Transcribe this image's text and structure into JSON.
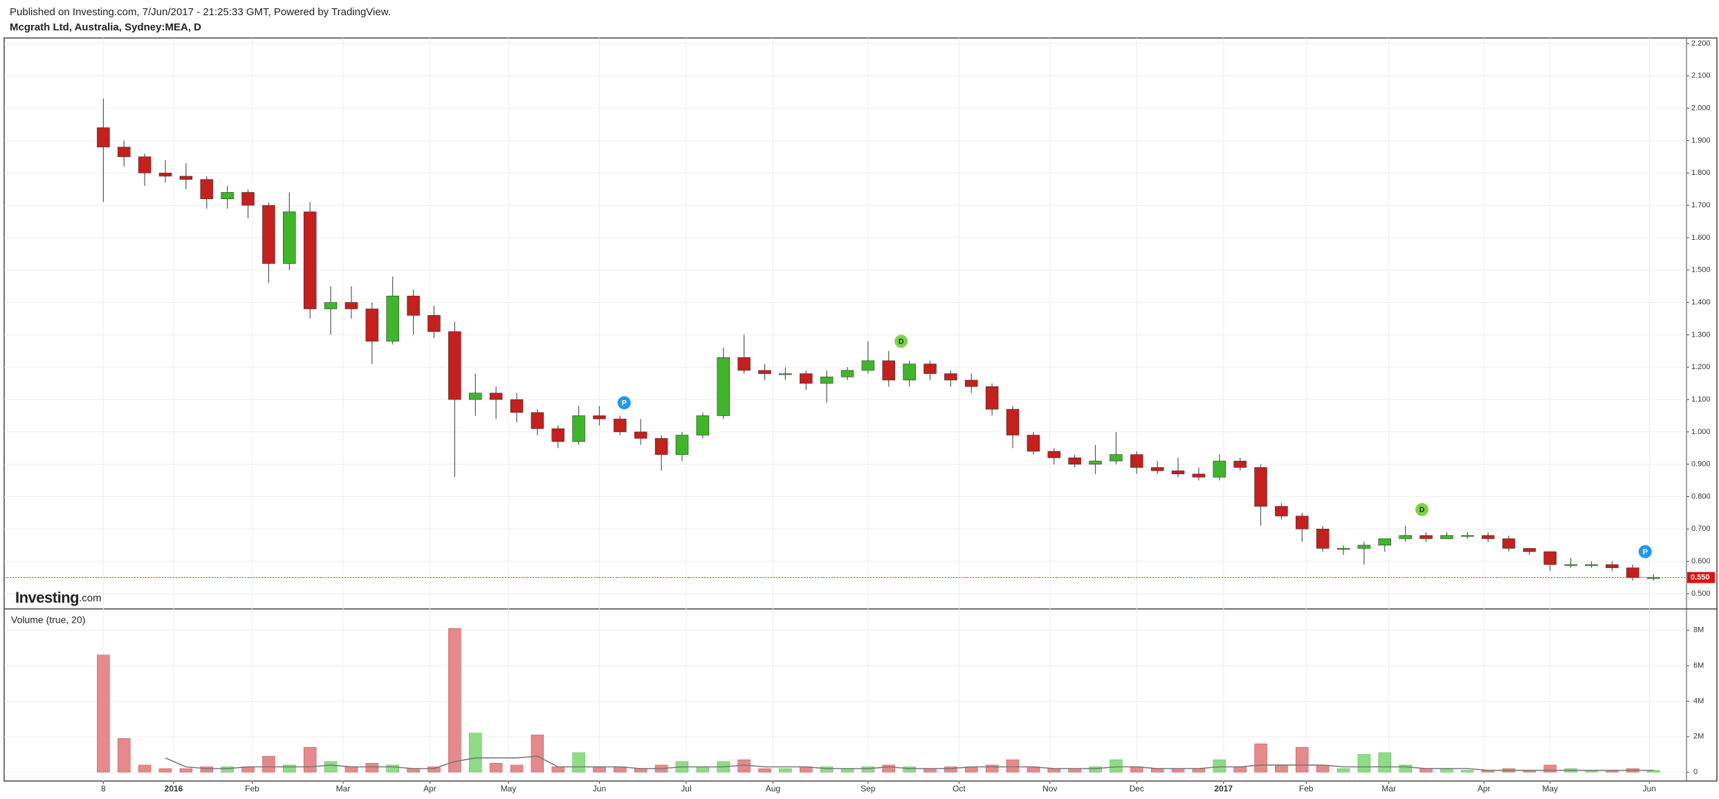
{
  "chart_data": {
    "type": "candlestick",
    "subtitle": "Published on Investing.com, 7/Jun/2017 - 21:25:33 GMT, Powered by TradingView.",
    "title": "Mcgrath Ltd, Australia, Sydney:MEA, D",
    "volume_label": "Volume (true, 20)",
    "watermark": {
      "brand": "Investing",
      "suffix": ".com"
    },
    "grid": true,
    "up_color": "#3fb62a",
    "down_color": "#c4201e",
    "up_volume_color": "#8fdc87",
    "down_volume_color": "#e58a8b",
    "volume_ma_color": "#777777",
    "xlim": [
      -24,
      383
    ],
    "xticks": [
      {
        "value": 0,
        "label": "8"
      },
      {
        "value": 17,
        "label": "2016"
      },
      {
        "value": 36,
        "label": "Feb"
      },
      {
        "value": 58,
        "label": "Mar"
      },
      {
        "value": 79,
        "label": "Apr"
      },
      {
        "value": 98,
        "label": "May"
      },
      {
        "value": 120,
        "label": "Jun"
      },
      {
        "value": 141,
        "label": "Jul"
      },
      {
        "value": 162,
        "label": "Aug"
      },
      {
        "value": 185,
        "label": "Sep"
      },
      {
        "value": 207,
        "label": "Oct"
      },
      {
        "value": 229,
        "label": "Nov"
      },
      {
        "value": 250,
        "label": "Dec"
      },
      {
        "value": 271,
        "label": "2017"
      },
      {
        "value": 291,
        "label": "Feb"
      },
      {
        "value": 311,
        "label": "Mar"
      },
      {
        "value": 334,
        "label": "Apr"
      },
      {
        "value": 350,
        "label": "May"
      },
      {
        "value": 374,
        "label": "Jun"
      }
    ],
    "ylim": [
      0.453,
      2.217
    ],
    "yticks": [
      {
        "value": 0.5,
        "label": "0.500"
      },
      {
        "value": 0.6,
        "label": "0.600"
      },
      {
        "value": 0.7,
        "label": "0.700"
      },
      {
        "value": 0.8,
        "label": "0.800"
      },
      {
        "value": 0.9,
        "label": "0.900"
      },
      {
        "value": 1.0,
        "label": "1.000"
      },
      {
        "value": 1.1,
        "label": "1.100"
      },
      {
        "value": 1.2,
        "label": "1.200"
      },
      {
        "value": 1.3,
        "label": "1.300"
      },
      {
        "value": 1.4,
        "label": "1.400"
      },
      {
        "value": 1.5,
        "label": "1.500"
      },
      {
        "value": 1.6,
        "label": "1.600"
      },
      {
        "value": 1.7,
        "label": "1.700"
      },
      {
        "value": 1.8,
        "label": "1.800"
      },
      {
        "value": 1.9,
        "label": "1.900"
      },
      {
        "value": 2.0,
        "label": "2.000"
      },
      {
        "value": 2.1,
        "label": "2.100"
      },
      {
        "value": 2.2,
        "label": "2.200"
      }
    ],
    "volume_ylim": [
      -0.5,
      9.2
    ],
    "volume_yticks": [
      0,
      {
        "value": 2,
        "label": "2M"
      },
      {
        "value": 4,
        "label": "4M"
      },
      {
        "value": 6,
        "label": "6M"
      },
      {
        "value": 8,
        "label": "8M"
      }
    ],
    "last_price": {
      "value": 0.55,
      "label": "0.550",
      "color": "#e01010"
    },
    "events": [
      {
        "label": "P",
        "x": 126,
        "y": 1.09,
        "color": "#2196f3"
      },
      {
        "label": "D",
        "x": 193,
        "y": 1.28,
        "color": "#7ed348"
      },
      {
        "label": "D",
        "x": 319,
        "y": 0.76,
        "color": "#7ed348"
      },
      {
        "label": "P",
        "x": 373,
        "y": 0.63,
        "color": "#2196f3"
      }
    ],
    "x": [
      0,
      5,
      10,
      15,
      20,
      25,
      30,
      35,
      40,
      45,
      50,
      55,
      60,
      65,
      70,
      75,
      80,
      85,
      90,
      95,
      100,
      105,
      110,
      115,
      120,
      125,
      130,
      135,
      140,
      145,
      150,
      155,
      160,
      165,
      170,
      175,
      180,
      185,
      190,
      195,
      200,
      205,
      210,
      215,
      220,
      225,
      230,
      235,
      240,
      245,
      250,
      255,
      260,
      265,
      270,
      275,
      280,
      285,
      290,
      295,
      300,
      305,
      310,
      315,
      320,
      325,
      330,
      335,
      340,
      345,
      350,
      355,
      360,
      365,
      370,
      375
    ],
    "open": [
      1.94,
      1.88,
      1.85,
      1.8,
      1.79,
      1.78,
      1.72,
      1.74,
      1.7,
      1.52,
      1.68,
      1.38,
      1.4,
      1.38,
      1.28,
      1.42,
      1.36,
      1.31,
      1.1,
      1.12,
      1.1,
      1.06,
      1.01,
      0.97,
      1.05,
      1.04,
      1.0,
      0.98,
      0.93,
      0.99,
      1.05,
      1.23,
      1.19,
      1.18,
      1.18,
      1.15,
      1.17,
      1.19,
      1.22,
      1.16,
      1.21,
      1.18,
      1.16,
      1.14,
      1.07,
      0.99,
      0.94,
      0.92,
      0.9,
      0.91,
      0.93,
      0.89,
      0.88,
      0.87,
      0.86,
      0.91,
      0.89,
      0.77,
      0.74,
      0.7,
      0.64,
      0.64,
      0.65,
      0.67,
      0.68,
      0.67,
      0.68,
      0.68,
      0.67,
      0.64,
      0.63,
      0.59,
      0.59,
      0.59,
      0.58,
      0.55
    ],
    "high": [
      2.03,
      1.9,
      1.86,
      1.84,
      1.83,
      1.79,
      1.76,
      1.75,
      1.71,
      1.74,
      1.71,
      1.45,
      1.45,
      1.4,
      1.48,
      1.44,
      1.39,
      1.34,
      1.18,
      1.14,
      1.12,
      1.07,
      1.02,
      1.08,
      1.08,
      1.05,
      1.04,
      0.99,
      1.0,
      1.06,
      1.26,
      1.3,
      1.21,
      1.2,
      1.19,
      1.19,
      1.2,
      1.28,
      1.25,
      1.22,
      1.22,
      1.19,
      1.18,
      1.15,
      1.08,
      1.0,
      0.95,
      0.93,
      0.96,
      1.0,
      0.94,
      0.91,
      0.92,
      0.89,
      0.93,
      0.92,
      0.9,
      0.78,
      0.75,
      0.71,
      0.65,
      0.66,
      0.67,
      0.71,
      0.69,
      0.69,
      0.69,
      0.69,
      0.68,
      0.64,
      0.63,
      0.61,
      0.6,
      0.6,
      0.59,
      0.56
    ],
    "low": [
      1.71,
      1.82,
      1.76,
      1.77,
      1.75,
      1.69,
      1.69,
      1.66,
      1.46,
      1.5,
      1.35,
      1.3,
      1.35,
      1.21,
      1.27,
      1.3,
      1.29,
      0.86,
      1.05,
      1.04,
      1.03,
      0.99,
      0.95,
      0.96,
      1.02,
      0.99,
      0.96,
      0.88,
      0.91,
      0.98,
      1.04,
      1.18,
      1.16,
      1.16,
      1.13,
      1.09,
      1.16,
      1.18,
      1.14,
      1.14,
      1.16,
      1.14,
      1.12,
      1.05,
      0.95,
      0.93,
      0.9,
      0.89,
      0.87,
      0.9,
      0.87,
      0.87,
      0.86,
      0.85,
      0.85,
      0.88,
      0.71,
      0.73,
      0.66,
      0.63,
      0.62,
      0.59,
      0.63,
      0.66,
      0.66,
      0.67,
      0.67,
      0.66,
      0.63,
      0.62,
      0.57,
      0.58,
      0.58,
      0.57,
      0.54,
      0.54
    ],
    "close": [
      1.88,
      1.85,
      1.8,
      1.79,
      1.78,
      1.72,
      1.74,
      1.7,
      1.52,
      1.68,
      1.38,
      1.4,
      1.38,
      1.28,
      1.42,
      1.36,
      1.31,
      1.1,
      1.12,
      1.1,
      1.06,
      1.01,
      0.97,
      1.05,
      1.04,
      1.0,
      0.98,
      0.93,
      0.99,
      1.05,
      1.23,
      1.19,
      1.18,
      1.18,
      1.15,
      1.17,
      1.19,
      1.22,
      1.16,
      1.21,
      1.18,
      1.16,
      1.14,
      1.07,
      0.99,
      0.94,
      0.92,
      0.9,
      0.91,
      0.93,
      0.89,
      0.88,
      0.87,
      0.86,
      0.91,
      0.89,
      0.77,
      0.74,
      0.7,
      0.64,
      0.64,
      0.65,
      0.67,
      0.68,
      0.67,
      0.68,
      0.68,
      0.67,
      0.64,
      0.63,
      0.59,
      0.59,
      0.59,
      0.58,
      0.55,
      0.55
    ],
    "volume": [
      6.6,
      1.9,
      0.4,
      0.2,
      0.2,
      0.3,
      0.3,
      0.3,
      0.9,
      0.4,
      1.4,
      0.6,
      0.3,
      0.5,
      0.4,
      0.2,
      0.3,
      8.1,
      2.2,
      0.5,
      0.4,
      2.1,
      0.3,
      1.1,
      0.3,
      0.3,
      0.2,
      0.4,
      0.6,
      0.3,
      0.6,
      0.7,
      0.2,
      0.2,
      0.3,
      0.3,
      0.2,
      0.3,
      0.4,
      0.3,
      0.2,
      0.3,
      0.3,
      0.4,
      0.7,
      0.3,
      0.2,
      0.2,
      0.3,
      0.7,
      0.3,
      0.2,
      0.2,
      0.2,
      0.7,
      0.3,
      1.6,
      0.4,
      1.4,
      0.4,
      0.2,
      1.0,
      1.1,
      0.4,
      0.2,
      0.2,
      0.1,
      0.1,
      0.2,
      0.1,
      0.4,
      0.2,
      0.1,
      0.1,
      0.2,
      0.1
    ],
    "volume_ma": [
      null,
      null,
      null,
      0.8,
      0.3,
      0.2,
      0.2,
      0.3,
      0.3,
      0.3,
      0.3,
      0.4,
      0.3,
      0.3,
      0.3,
      0.2,
      0.2,
      0.6,
      0.8,
      0.8,
      0.8,
      0.9,
      0.3,
      0.3,
      0.3,
      0.3,
      0.2,
      0.2,
      0.3,
      0.3,
      0.3,
      0.4,
      0.3,
      0.3,
      0.3,
      0.2,
      0.2,
      0.2,
      0.3,
      0.2,
      0.2,
      0.2,
      0.3,
      0.3,
      0.3,
      0.3,
      0.2,
      0.2,
      0.2,
      0.3,
      0.3,
      0.2,
      0.2,
      0.2,
      0.3,
      0.3,
      0.4,
      0.4,
      0.4,
      0.4,
      0.3,
      0.3,
      0.3,
      0.3,
      0.2,
      0.2,
      0.2,
      0.1,
      0.1,
      0.1,
      0.1,
      0.1,
      0.1,
      0.1,
      0.1,
      0.1
    ]
  }
}
